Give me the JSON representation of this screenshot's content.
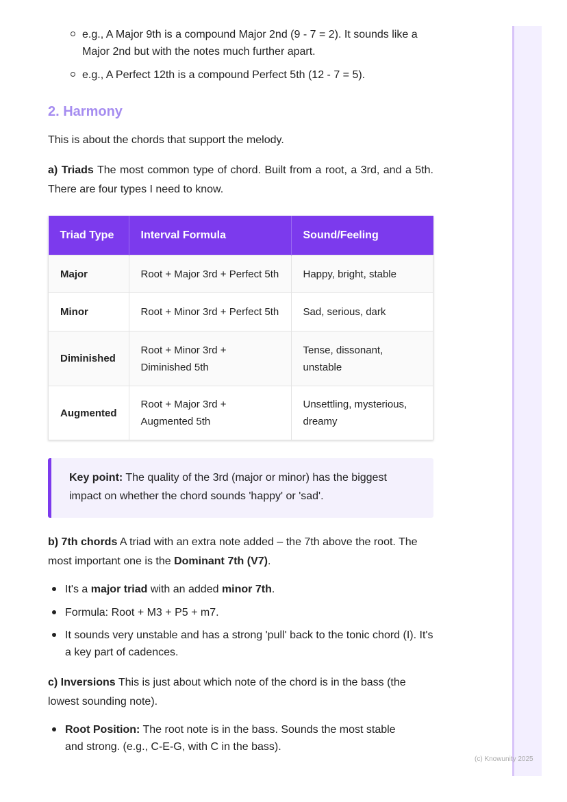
{
  "intervals_examples": [
    {
      "text": "e.g., A Major 9th is a compound Major 2nd (9 - 7 = 2). It sounds like a Major 2nd but with the notes much further apart."
    },
    {
      "text": "e.g., A Perfect 12th is a compound Perfect 5th (12 - 7 = 5)."
    }
  ],
  "harmony": {
    "heading": "2. Harmony",
    "intro": "This is about the chords that support the melody.",
    "triads_label": "a) Triads",
    "triads_text": " The most common type of chord. Built from a root, a 3rd, and a 5th. There are four types I need to know.",
    "table": {
      "headers": [
        "Triad Type",
        "Interval Formula",
        "Sound/Feeling"
      ],
      "rows": [
        [
          "Major",
          "Root + Major 3rd + Perfect 5th",
          "Happy, bright, stable"
        ],
        [
          "Minor",
          "Root + Minor 3rd + Perfect 5th",
          "Sad, serious, dark"
        ],
        [
          "Diminished",
          "Root + Minor 3rd + Diminished 5th",
          "Tense, dissonant, unstable"
        ],
        [
          "Augmented",
          "Root + Major 3rd + Augmented 5th",
          "Unsettling, mysterious, dreamy"
        ]
      ]
    },
    "key_point_label": "Key point:",
    "key_point_text": " The quality of the 3rd (major or minor) has the biggest impact on whether the chord sounds 'happy' or 'sad'.",
    "sevenths_label": "b) 7th chords",
    "sevenths_text": " A triad with an extra note added – the 7th above the root. The most important one is the ",
    "sevenths_bold": "Dominant 7th (V7)",
    "sevenths_end": ".",
    "sevenths_bullets": {
      "b1a": "It's a ",
      "b1b": "major triad",
      "b1c": " with an added ",
      "b1d": "minor 7th",
      "b1e": ".",
      "b2": "Formula: Root + M3 + P5 + m7.",
      "b3": "It sounds very unstable and has a strong 'pull' back to the tonic chord (I). It's a key part of cadences."
    },
    "inversions_label": "c) Inversions",
    "inversions_text": " This is just about which note of the chord is in the bass (the lowest sounding note).",
    "inv_b1_label": "Root Position:",
    "inv_b1_text": " The root note is in the bass. Sounds the most stable and strong. (e.g., C-E-G, with C in the bass)."
  },
  "footer": "(c) Knowunity 2025",
  "colors": {
    "accent": "#7c3aed",
    "heading": "#a58cf0",
    "callout_bg": "#f4f1fd"
  }
}
